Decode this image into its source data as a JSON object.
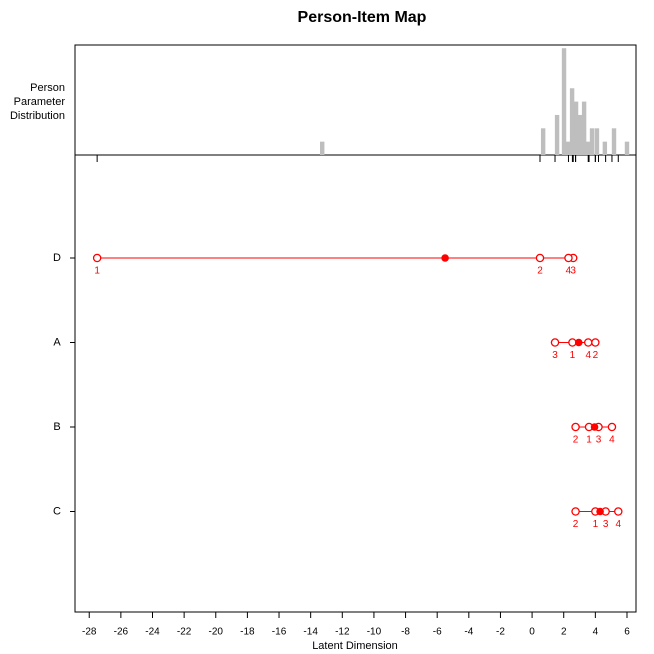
{
  "chart_data": {
    "type": "person-item-map",
    "title": "Person-Item Map",
    "person_label": [
      "Person",
      "Parameter",
      "Distribution"
    ],
    "xlabel": "Latent Dimension",
    "xlim": [
      -28.9,
      6.57
    ],
    "xticks": [
      -28,
      -26,
      -24,
      -22,
      -20,
      -18,
      -16,
      -14,
      -12,
      -10,
      -8,
      -6,
      -4,
      -2,
      0,
      2,
      4,
      6
    ],
    "distribution": {
      "color": "#bebebe",
      "x": [
        -13.27,
        0.7,
        1.58,
        2.02,
        2.28,
        2.53,
        2.78,
        3.03,
        3.29,
        3.54,
        3.79,
        4.1,
        4.6,
        5.18,
        6.0
      ],
      "values": [
        1,
        2,
        3,
        8,
        1,
        5,
        4,
        3,
        4,
        1,
        2,
        2,
        1,
        2,
        1
      ]
    },
    "color": "#ff0000",
    "threshold_labels": [
      "1",
      "2",
      "3",
      "4"
    ],
    "items": [
      {
        "name": "D",
        "location": -5.5,
        "thresholds": [
          -27.5,
          0.5,
          2.6,
          2.3
        ]
      },
      {
        "name": "A",
        "location": 2.95,
        "thresholds": [
          2.55,
          4.0,
          1.45,
          3.55
        ]
      },
      {
        "name": "B",
        "location": 3.95,
        "thresholds": [
          3.6,
          2.75,
          4.2,
          5.05
        ]
      },
      {
        "name": "C",
        "location": 4.3,
        "thresholds": [
          4.0,
          2.75,
          4.65,
          5.45
        ]
      }
    ]
  }
}
